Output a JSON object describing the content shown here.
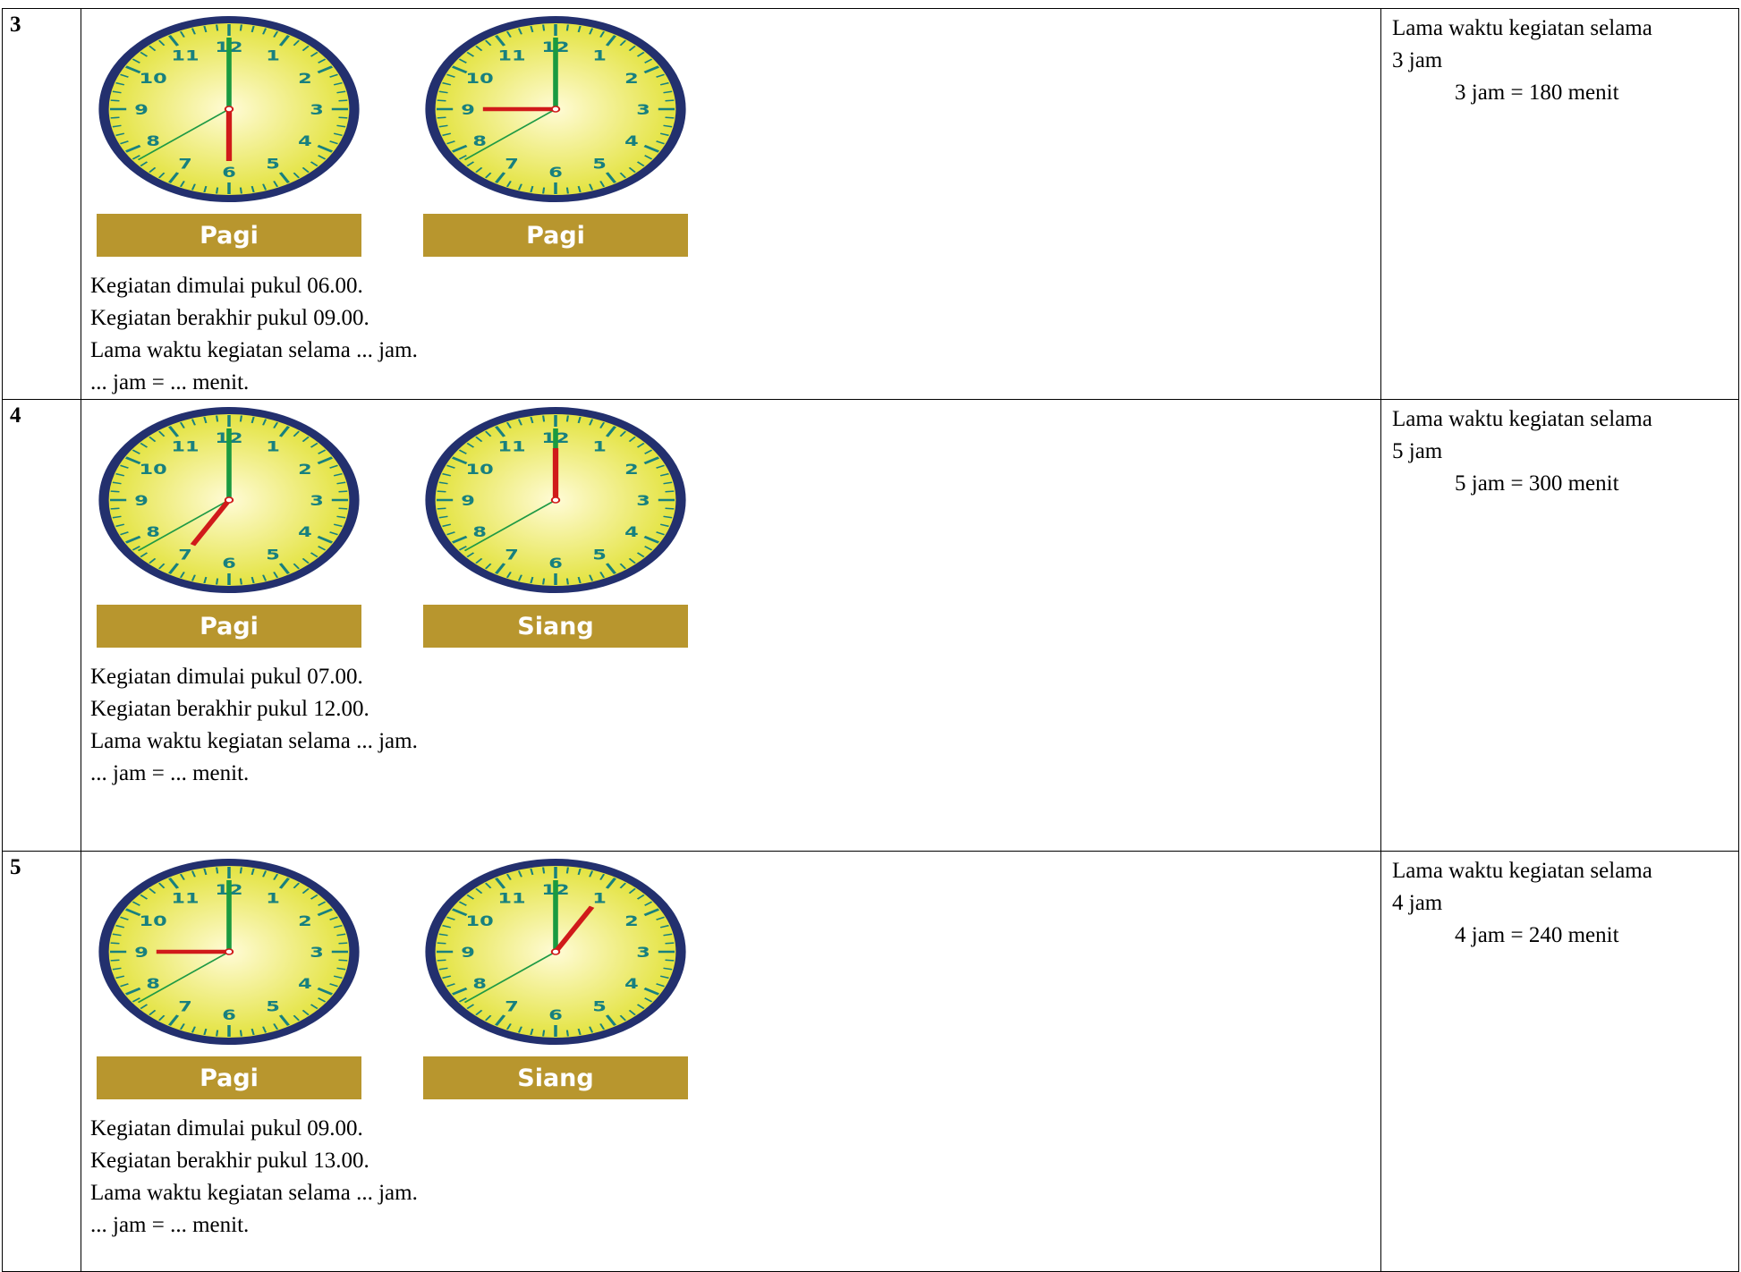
{
  "clock_numerals": [
    "12",
    "1",
    "2",
    "3",
    "4",
    "5",
    "6",
    "7",
    "8",
    "9",
    "10",
    "11"
  ],
  "rows": [
    {
      "number": "3",
      "clock_labels": [
        "Pagi",
        "Pagi"
      ],
      "lines": [
        "Kegiatan dimulai pukul 06.00.",
        "Kegiatan berakhir pukul 09.00.",
        "Lama waktu kegiatan selama ... jam.",
        "... jam = ... menit."
      ],
      "answer_lines": [
        "Lama waktu kegiatan selama",
        "3 jam",
        "3 jam = 180 menit"
      ]
    },
    {
      "number": "4",
      "clock_labels": [
        "Pagi",
        "Siang"
      ],
      "lines": [
        "Kegiatan dimulai pukul 07.00.",
        "Kegiatan berakhir pukul 12.00.",
        "Lama waktu kegiatan selama ... jam.",
        "... jam = ... menit."
      ],
      "answer_lines": [
        "Lama waktu kegiatan selama",
        "5 jam",
        "5 jam = 300 menit"
      ]
    },
    {
      "number": "5",
      "clock_labels": [
        "Pagi",
        "Siang"
      ],
      "lines": [
        "Kegiatan dimulai pukul 09.00.",
        "Kegiatan berakhir pukul 13.00.",
        "Lama waktu kegiatan selama ... jam.",
        "... jam = ... menit."
      ],
      "answer_lines": [
        "Lama waktu kegiatan selama",
        "4 jam",
        "4 jam = 240 menit"
      ]
    }
  ]
}
